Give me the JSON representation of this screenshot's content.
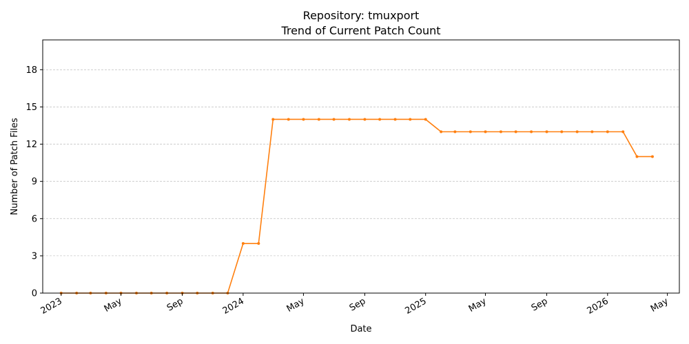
{
  "chart_data": {
    "type": "line",
    "title_line1": "Repository: tmuxport",
    "title_line2": "Trend of Current Patch Count",
    "xlabel": "Date",
    "ylabel": "Number of Patch Files",
    "xlim": [
      "2022-11-25",
      "2026-05-25"
    ],
    "ylim": [
      0,
      20.4
    ],
    "yticks": [
      0,
      3,
      6,
      9,
      12,
      15,
      18
    ],
    "xticks": [
      {
        "date": "2023-01-01",
        "label": "2023"
      },
      {
        "date": "2023-05-01",
        "label": "May"
      },
      {
        "date": "2023-09-01",
        "label": "Sep"
      },
      {
        "date": "2024-01-01",
        "label": "2024"
      },
      {
        "date": "2024-05-01",
        "label": "May"
      },
      {
        "date": "2024-09-01",
        "label": "Sep"
      },
      {
        "date": "2025-01-01",
        "label": "2025"
      },
      {
        "date": "2025-05-01",
        "label": "May"
      },
      {
        "date": "2025-09-01",
        "label": "Sep"
      },
      {
        "date": "2026-01-01",
        "label": "2026"
      },
      {
        "date": "2026-05-01",
        "label": "May"
      }
    ],
    "grid": "y",
    "color": "#ff7f0e",
    "series": [
      {
        "x": [
          "2023-01-01",
          "2023-02-01",
          "2023-03-01",
          "2023-04-01",
          "2023-05-01",
          "2023-06-01",
          "2023-07-01",
          "2023-08-01",
          "2023-09-01",
          "2023-10-01",
          "2023-11-01",
          "2023-12-01",
          "2024-01-01",
          "2024-02-01",
          "2024-03-01",
          "2024-04-01",
          "2024-05-01",
          "2024-06-01",
          "2024-07-01",
          "2024-08-01",
          "2024-09-01",
          "2024-10-01",
          "2024-11-01",
          "2024-12-01",
          "2025-01-01",
          "2025-02-01",
          "2025-03-01",
          "2025-04-01",
          "2025-05-01",
          "2025-06-01",
          "2025-07-01",
          "2025-08-01",
          "2025-09-01",
          "2025-10-01",
          "2025-11-01",
          "2025-12-01",
          "2026-01-01",
          "2026-02-01",
          "2026-03-01",
          "2026-04-01"
        ],
        "values": [
          0,
          0,
          0,
          0,
          0,
          0,
          0,
          0,
          0,
          0,
          0,
          0,
          4,
          4,
          14,
          14,
          14,
          14,
          14,
          14,
          14,
          14,
          14,
          14,
          14,
          13,
          13,
          13,
          13,
          13,
          13,
          13,
          13,
          13,
          13,
          13,
          13,
          13,
          11,
          11
        ]
      }
    ]
  }
}
